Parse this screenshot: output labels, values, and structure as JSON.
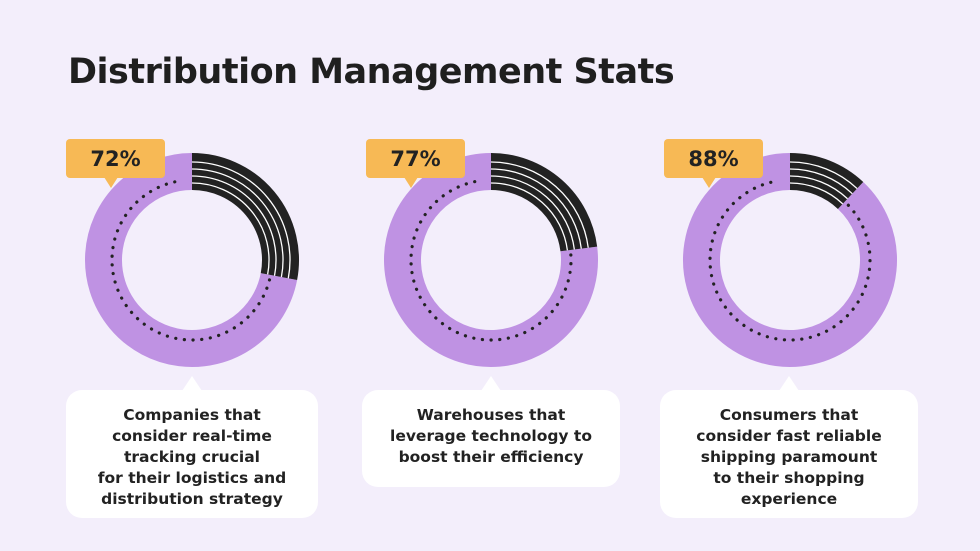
{
  "title": "Distribution Management Stats",
  "colors": {
    "background": "#f3eefb",
    "primary": "#bf92e3",
    "secondary": "#222222",
    "badge": "#f7b955"
  },
  "chart_data": [
    {
      "type": "pie",
      "variant": "donut",
      "label": "72%",
      "values": [
        72,
        28
      ],
      "caption_lines": [
        "Companies that",
        "consider real-time",
        "tracking crucial",
        "for their logistics and",
        "distribution strategy"
      ]
    },
    {
      "type": "pie",
      "variant": "donut",
      "label": "77%",
      "values": [
        77,
        23
      ],
      "caption_lines": [
        "Warehouses that",
        "leverage technology to",
        "boost their efficiency"
      ]
    },
    {
      "type": "pie",
      "variant": "donut",
      "label": "88%",
      "values": [
        88,
        12
      ],
      "caption_lines": [
        "Consumers that",
        "consider fast reliable",
        "shipping paramount",
        "to their shopping",
        "experience"
      ]
    }
  ]
}
